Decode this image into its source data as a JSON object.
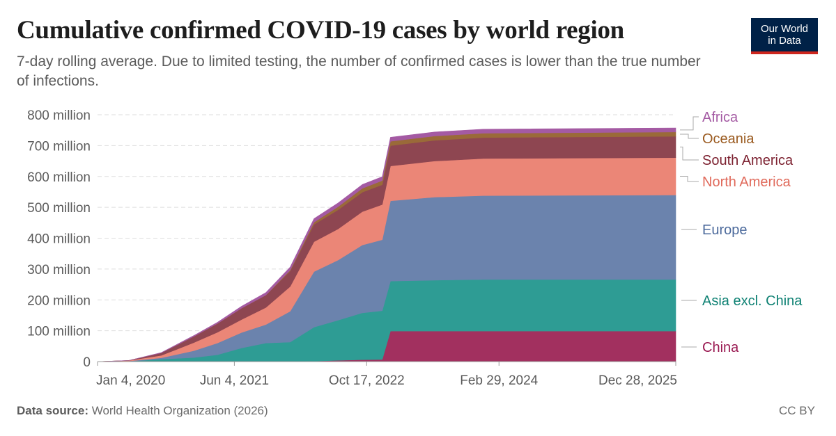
{
  "header": {
    "title": "Cumulative confirmed COVID-19 cases by world region",
    "subtitle": "7-day rolling average. Due to limited testing, the number of confirmed cases is lower than the true number of infections.",
    "logo_line1": "Our World",
    "logo_line2": "in Data"
  },
  "footer": {
    "source_label": "Data source:",
    "source_text": "World Health Organization (2026)",
    "license": "CC BY"
  },
  "colors": {
    "China": "#a2305f",
    "Asia excl. China": "#2e9c94",
    "Europe": "#6b83ad",
    "North America": "#eb8677",
    "South America": "#8e4651",
    "Oceania": "#9a6a39",
    "Africa": "#a45aa3",
    "logo_bg": "#002147",
    "logo_accent": "#ce261e"
  },
  "chart_data": {
    "type": "area",
    "stacked": true,
    "title": "Cumulative confirmed COVID-19 cases by world region",
    "xlabel": "",
    "ylabel": "",
    "x_start": "2020-01-04",
    "x_end": "2025-12-28",
    "ylim": [
      0,
      800
    ],
    "y_unit": "million",
    "y_ticks": [
      {
        "value": 0,
        "label": "0"
      },
      {
        "value": 100,
        "label": "100 million"
      },
      {
        "value": 200,
        "label": "200 million"
      },
      {
        "value": 300,
        "label": "300 million"
      },
      {
        "value": 400,
        "label": "400 million"
      },
      {
        "value": 500,
        "label": "500 million"
      },
      {
        "value": 600,
        "label": "600 million"
      },
      {
        "value": 700,
        "label": "700 million"
      },
      {
        "value": 800,
        "label": "800 million"
      }
    ],
    "x_ticks": [
      {
        "date": "2020-01-04",
        "label": "Jan 4, 2020"
      },
      {
        "date": "2021-06-04",
        "label": "Jun 4, 2021"
      },
      {
        "date": "2022-10-17",
        "label": "Oct 17, 2022"
      },
      {
        "date": "2024-02-29",
        "label": "Feb 29, 2024"
      },
      {
        "date": "2025-12-28",
        "label": "Dec 28, 2025"
      }
    ],
    "x": [
      "2020-01-04",
      "2020-05-01",
      "2020-09-01",
      "2021-01-01",
      "2021-04-01",
      "2021-07-01",
      "2021-10-01",
      "2022-01-01",
      "2022-04-01",
      "2022-07-01",
      "2022-10-01",
      "2022-12-15",
      "2023-01-15",
      "2023-07-01",
      "2024-01-01",
      "2025-12-28"
    ],
    "series": [
      {
        "name": "China",
        "values": [
          0,
          0.1,
          0.1,
          0.1,
          0.1,
          0.1,
          0.1,
          0.2,
          1.5,
          4,
          6,
          7,
          99,
          99,
          99,
          99
        ]
      },
      {
        "name": "Asia excl. China",
        "values": [
          0,
          0.5,
          8,
          13,
          22,
          44,
          60,
          63,
          110,
          130,
          152,
          158,
          162,
          165,
          167,
          167
        ]
      },
      {
        "name": "Europe",
        "values": [
          0,
          1.3,
          4,
          22,
          38,
          50,
          60,
          100,
          180,
          195,
          220,
          230,
          260,
          269,
          272,
          274
        ]
      },
      {
        "name": "North America",
        "values": [
          0,
          1.4,
          8,
          26,
          35,
          42,
          55,
          80,
          97,
          101,
          108,
          114,
          113,
          117,
          120,
          121
        ]
      },
      {
        "name": "South America",
        "values": [
          0,
          0.3,
          8,
          20,
          28,
          37,
          40,
          50,
          56,
          62,
          63,
          64,
          66,
          67,
          68,
          69
        ]
      },
      {
        "name": "Oceania",
        "values": [
          0,
          0.01,
          0.03,
          0.05,
          0.06,
          0.08,
          0.25,
          3,
          7,
          10,
          12.5,
          13.5,
          14,
          14,
          14,
          14
        ]
      },
      {
        "name": "Africa",
        "values": [
          0,
          0.05,
          1.2,
          2.8,
          4.2,
          6,
          8.3,
          10,
          11.6,
          12,
          12.5,
          12.8,
          13,
          13.1,
          13.2,
          13.2
        ]
      }
    ],
    "legend": [
      {
        "name": "Africa",
        "label": "Africa"
      },
      {
        "name": "Oceania",
        "label": "Oceania"
      },
      {
        "name": "South America",
        "label": "South America"
      },
      {
        "name": "North America",
        "label": "North America"
      },
      {
        "name": "Europe",
        "label": "Europe"
      },
      {
        "name": "Asia excl. China",
        "label": "Asia excl. China"
      },
      {
        "name": "China",
        "label": "China"
      }
    ],
    "legend_placement": "right"
  }
}
